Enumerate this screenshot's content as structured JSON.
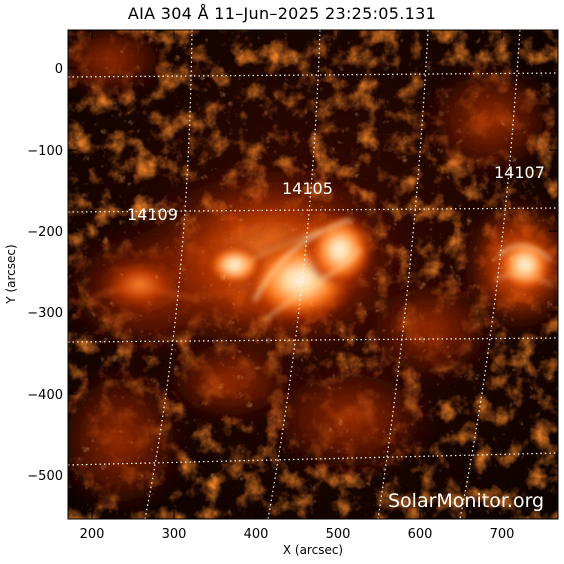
{
  "title": "AIA 304 Å 11–Jun–2025 23:25:05.131",
  "axes": {
    "xlabel": "X (arcsec)",
    "ylabel": "Y (arcsec)",
    "x_ticks": [
      "200",
      "300",
      "400",
      "500",
      "600",
      "700"
    ],
    "y_ticks": [
      "0",
      "−100",
      "−200",
      "−300",
      "−400",
      "−500"
    ]
  },
  "active_regions": [
    {
      "label": "14109"
    },
    {
      "label": "14105"
    },
    {
      "label": "14107"
    }
  ],
  "watermark": "SolarMonitor.org",
  "colors": {
    "background": "#ffffff",
    "image_dark": "#120300",
    "emission_mid": "#a02a00",
    "emission_bright": "#ff9a40",
    "emission_peak": "#fff2dc",
    "grid": "#ffffff"
  }
}
